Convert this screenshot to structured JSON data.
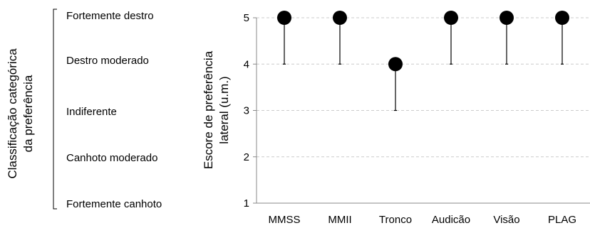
{
  "left_scale": {
    "title_line1": "Classificação categórica",
    "title_line2": "da preferência",
    "levels": [
      "Fortemente destro",
      "Destro moderado",
      "Indiferente",
      "Canhoto moderado",
      "Fortemente canhoto"
    ]
  },
  "chart_data": {
    "type": "scatter",
    "ylabel_line1": "Escore de preferência",
    "ylabel_line2": "lateral (u.m.)",
    "categories": [
      "MMSS",
      "MMII",
      "Tronco",
      "Audicão",
      "Visão",
      "PLAG"
    ],
    "values": [
      5,
      5,
      4,
      5,
      5,
      5
    ],
    "error_lower": [
      4,
      4,
      3,
      4,
      4,
      4
    ],
    "yticks": [
      1,
      2,
      3,
      4,
      5
    ],
    "ylim": [
      1,
      5
    ],
    "grid": true,
    "legend": "none",
    "colors": {
      "marker": "#000000",
      "grid": "#cccccc",
      "axis": "#888888"
    }
  }
}
